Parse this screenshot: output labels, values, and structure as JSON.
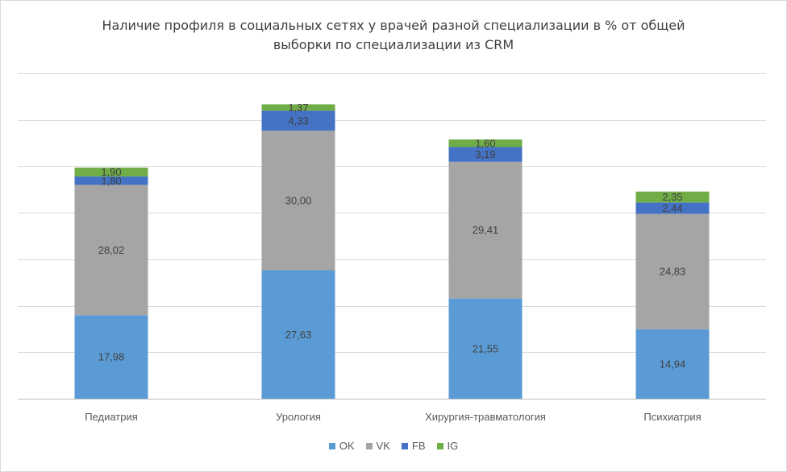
{
  "chart_data": {
    "type": "bar",
    "stacked": true,
    "title_lines": [
      "Наличие профиля в социальных сетях у врачей разной специализации в % от общей",
      "выборки по специализации из CRM"
    ],
    "categories": [
      "Педиатрия",
      "Урология",
      "Хирургия-травматология",
      "Психиатрия"
    ],
    "series": [
      {
        "name": "OK",
        "color": "#5b9bd5",
        "values": [
          17.98,
          27.63,
          21.55,
          14.94
        ],
        "labels": [
          "17,98",
          "27,63",
          "21,55",
          "14,94"
        ]
      },
      {
        "name": "VK",
        "color": "#a5a5a5",
        "values": [
          28.02,
          30.0,
          29.41,
          24.83
        ],
        "labels": [
          "28,02",
          "30,00",
          "29,41",
          "24,83"
        ]
      },
      {
        "name": "FB",
        "color": "#4472c4",
        "values": [
          1.8,
          4.33,
          3.19,
          2.44
        ],
        "labels": [
          "1,80",
          "4,33",
          "3,19",
          "2,44"
        ]
      },
      {
        "name": "IG",
        "color": "#70ad47",
        "values": [
          1.9,
          1.37,
          1.6,
          2.35
        ],
        "labels": [
          "1,90",
          "1,37",
          "1,60",
          "2,35"
        ]
      }
    ],
    "ylim": [
      0,
      70
    ],
    "y_gridline_step": 10,
    "y_tick_labels_visible": false,
    "grid": true,
    "legend_position": "bottom",
    "gridline_color": "#d9d9d9",
    "axis_line_color": "#bfbfbf",
    "data_label_color": "#404040",
    "category_label_color": "#595959"
  }
}
